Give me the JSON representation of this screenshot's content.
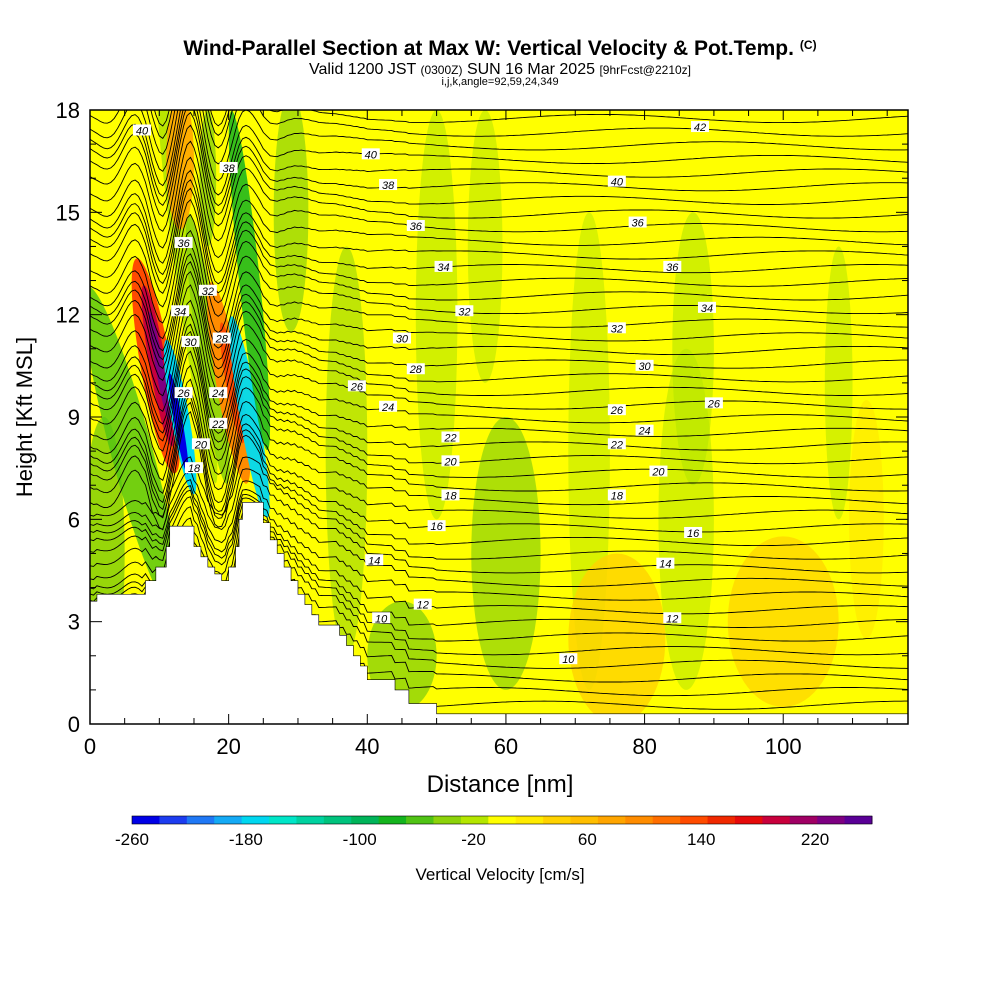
{
  "header": {
    "title_main": "Wind-Parallel Section at Max W: Vertical Velocity & Pot.Temp.",
    "title_unit": "(C)",
    "valid_prefix": "Valid 1200 JST",
    "valid_utc": "(0300Z)",
    "valid_date": "SUN 16 Mar 2025",
    "valid_fcst": "[9hrFcst@2210z]",
    "indices": "i,j,k,angle=92,59,24,349"
  },
  "colorbar": {
    "title": "Vertical Velocity [cm/s]",
    "tick_labels": [
      "-260",
      "-180",
      "-100",
      "-20",
      "60",
      "140",
      "220"
    ],
    "colors": [
      "#0000e6",
      "#1c3cf0",
      "#1f78f5",
      "#14aaf5",
      "#00d7f0",
      "#00e6c8",
      "#00d2a0",
      "#00c37d",
      "#00b45a",
      "#14b41e",
      "#50c314",
      "#8cd20a",
      "#b4e600",
      "#ffff00",
      "#ffeb00",
      "#ffd200",
      "#ffbe00",
      "#ffa500",
      "#ff8c00",
      "#ff6e00",
      "#ff4b00",
      "#f02800",
      "#e60a0a",
      "#c8003c",
      "#a00064",
      "#7d0082",
      "#5a0096"
    ]
  },
  "chart_data": {
    "type": "heatmap",
    "title": "Wind-Parallel Section at Max W: Vertical Velocity & Pot.Temp.",
    "xlabel": "Distance [nm]",
    "ylabel": "Height [Kft MSL]",
    "xlim": [
      0,
      118
    ],
    "ylim": [
      0,
      18
    ],
    "x_ticks": [
      0,
      20,
      40,
      60,
      80,
      100
    ],
    "y_ticks": [
      0,
      3,
      6,
      9,
      12,
      15,
      18
    ],
    "color_variable": "Vertical Velocity [cm/s]",
    "color_range": [
      -260,
      260
    ],
    "contour_variable": "Potential Temperature (C)",
    "contour_labels": [
      {
        "x": 7.5,
        "y": 17.4,
        "v": 40
      },
      {
        "x": 40.5,
        "y": 16.7,
        "v": 40
      },
      {
        "x": 88,
        "y": 17.5,
        "v": 42
      },
      {
        "x": 20,
        "y": 16.3,
        "v": 38
      },
      {
        "x": 43,
        "y": 15.8,
        "v": 38
      },
      {
        "x": 76,
        "y": 15.9,
        "v": 40
      },
      {
        "x": 13.5,
        "y": 14.1,
        "v": 36
      },
      {
        "x": 47,
        "y": 14.6,
        "v": 36
      },
      {
        "x": 79,
        "y": 14.7,
        "v": 36
      },
      {
        "x": 17,
        "y": 12.7,
        "v": 32
      },
      {
        "x": 51,
        "y": 13.4,
        "v": 34
      },
      {
        "x": 84,
        "y": 13.4,
        "v": 36
      },
      {
        "x": 13,
        "y": 12.1,
        "v": 34
      },
      {
        "x": 54,
        "y": 12.1,
        "v": 32
      },
      {
        "x": 89,
        "y": 12.2,
        "v": 34
      },
      {
        "x": 14.5,
        "y": 11.2,
        "v": 30
      },
      {
        "x": 45,
        "y": 11.3,
        "v": 30
      },
      {
        "x": 76,
        "y": 11.6,
        "v": 32
      },
      {
        "x": 19,
        "y": 11.3,
        "v": 28
      },
      {
        "x": 47,
        "y": 10.4,
        "v": 28
      },
      {
        "x": 80,
        "y": 10.5,
        "v": 30
      },
      {
        "x": 38.5,
        "y": 9.9,
        "v": 26
      },
      {
        "x": 13.5,
        "y": 9.7,
        "v": 26
      },
      {
        "x": 90,
        "y": 9.4,
        "v": 26
      },
      {
        "x": 18.5,
        "y": 9.7,
        "v": 24
      },
      {
        "x": 43,
        "y": 9.3,
        "v": 24
      },
      {
        "x": 76,
        "y": 9.2,
        "v": 26
      },
      {
        "x": 18.5,
        "y": 8.8,
        "v": 22
      },
      {
        "x": 52,
        "y": 8.4,
        "v": 22
      },
      {
        "x": 80,
        "y": 8.6,
        "v": 24
      },
      {
        "x": 16,
        "y": 8.2,
        "v": 20
      },
      {
        "x": 52,
        "y": 7.7,
        "v": 20
      },
      {
        "x": 76,
        "y": 8.2,
        "v": 22
      },
      {
        "x": 15,
        "y": 7.5,
        "v": 18
      },
      {
        "x": 52,
        "y": 6.7,
        "v": 18
      },
      {
        "x": 82,
        "y": 7.4,
        "v": 20
      },
      {
        "x": 50,
        "y": 5.8,
        "v": 16
      },
      {
        "x": 76,
        "y": 6.7,
        "v": 18
      },
      {
        "x": 87,
        "y": 5.6,
        "v": 16
      },
      {
        "x": 41,
        "y": 4.8,
        "v": 14
      },
      {
        "x": 83,
        "y": 4.7,
        "v": 14
      },
      {
        "x": 48,
        "y": 3.5,
        "v": 12
      },
      {
        "x": 84,
        "y": 3.1,
        "v": 12
      },
      {
        "x": 42,
        "y": 3.1,
        "v": 10
      },
      {
        "x": 69,
        "y": 1.9,
        "v": 10
      }
    ],
    "terrain_profile": [
      [
        0,
        3.6
      ],
      [
        1,
        3.6
      ],
      [
        1,
        3.8
      ],
      [
        8,
        3.8
      ],
      [
        8,
        4.2
      ],
      [
        9.5,
        4.2
      ],
      [
        9.5,
        4.6
      ],
      [
        11,
        4.6
      ],
      [
        11,
        5.2
      ],
      [
        11.5,
        5.2
      ],
      [
        11.5,
        5.8
      ],
      [
        15,
        5.8
      ],
      [
        15,
        5.2
      ],
      [
        16,
        5.2
      ],
      [
        16,
        4.9
      ],
      [
        17,
        4.9
      ],
      [
        17,
        4.6
      ],
      [
        18,
        4.6
      ],
      [
        18,
        4.4
      ],
      [
        19,
        4.4
      ],
      [
        19,
        4.2
      ],
      [
        20,
        4.2
      ],
      [
        20,
        4.6
      ],
      [
        21,
        4.6
      ],
      [
        21,
        5.2
      ],
      [
        21.5,
        5.2
      ],
      [
        21.5,
        6.0
      ],
      [
        22,
        6.0
      ],
      [
        22,
        6.5
      ],
      [
        25,
        6.5
      ],
      [
        25,
        5.9
      ],
      [
        26,
        5.9
      ],
      [
        26,
        5.4
      ],
      [
        27,
        5.4
      ],
      [
        27,
        5.0
      ],
      [
        28,
        5.0
      ],
      [
        28,
        4.6
      ],
      [
        29,
        4.6
      ],
      [
        29,
        4.2
      ],
      [
        30,
        4.2
      ],
      [
        30,
        3.8
      ],
      [
        31,
        3.8
      ],
      [
        31,
        3.5
      ],
      [
        32,
        3.5
      ],
      [
        32,
        3.2
      ],
      [
        33,
        3.2
      ],
      [
        33,
        2.9
      ],
      [
        36,
        2.9
      ],
      [
        36,
        2.6
      ],
      [
        37,
        2.6
      ],
      [
        37,
        2.3
      ],
      [
        38,
        2.3
      ],
      [
        38,
        2.0
      ],
      [
        39,
        2.0
      ],
      [
        39,
        1.7
      ],
      [
        40,
        1.7
      ],
      [
        40,
        1.3
      ],
      [
        44,
        1.3
      ],
      [
        44,
        1.0
      ],
      [
        46,
        1.0
      ],
      [
        46,
        0.6
      ],
      [
        50,
        0.6
      ],
      [
        50,
        0.3
      ],
      [
        118,
        0.3
      ]
    ]
  }
}
